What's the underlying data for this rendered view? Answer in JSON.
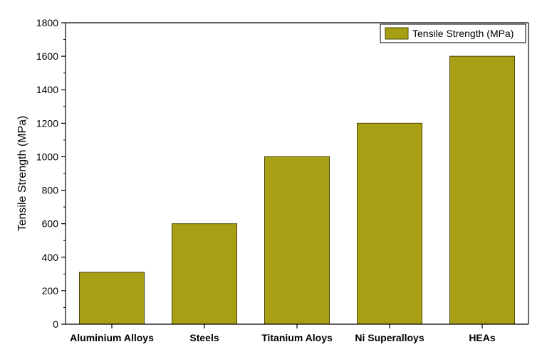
{
  "chart_data": {
    "type": "bar",
    "categories": [
      "Aluminium Alloys",
      "Steels",
      "Titanium Aloys",
      "Ni Superalloys",
      "HEAs"
    ],
    "series": [
      {
        "name": "Tensile Strength (MPa)",
        "values": [
          310,
          600,
          1000,
          1200,
          1600
        ]
      }
    ],
    "title": "",
    "xlabel": "",
    "ylabel": "Tensile Strength (MPa)",
    "ylim": [
      0,
      1800
    ],
    "yticks": [
      0,
      200,
      400,
      600,
      800,
      1000,
      1200,
      1400,
      1600,
      1800
    ],
    "grid": false,
    "legend_position": "top-right",
    "colors": {
      "bar_fill": "#A8A014",
      "bar_stroke": "#4A4505",
      "axis": "#000000"
    }
  }
}
